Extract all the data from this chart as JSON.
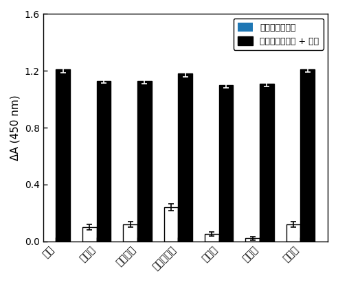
{
  "categories": [
    "乐果",
    "辛硫磷",
    "氧化乐果",
    "甲基对硫磷",
    "毒死蝸",
    "敌敌界",
    "甲拌磷"
  ],
  "white_values": [
    0.0,
    0.1,
    0.12,
    0.24,
    0.05,
    0.02,
    0.12
  ],
  "black_values": [
    1.21,
    1.13,
    1.13,
    1.18,
    1.1,
    1.11,
    1.21
  ],
  "white_errors": [
    0.0,
    0.02,
    0.02,
    0.025,
    0.015,
    0.01,
    0.02
  ],
  "black_errors": [
    0.025,
    0.015,
    0.02,
    0.02,
    0.02,
    0.02,
    0.02
  ],
  "legend_white": "其它有机磷农药",
  "legend_black": "其它有机磷农药 + 乐果",
  "ylabel": "ΔA (450 nm)",
  "ylim": [
    0,
    1.6
  ],
  "yticks": [
    0.0,
    0.4,
    0.8,
    1.2,
    1.6
  ],
  "bar_width": 0.35,
  "white_color": "#ffffff",
  "black_color": "#000000",
  "edge_color": "#000000",
  "background_color": "#ffffff",
  "figsize": [
    4.92,
    4.11
  ],
  "dpi": 100
}
